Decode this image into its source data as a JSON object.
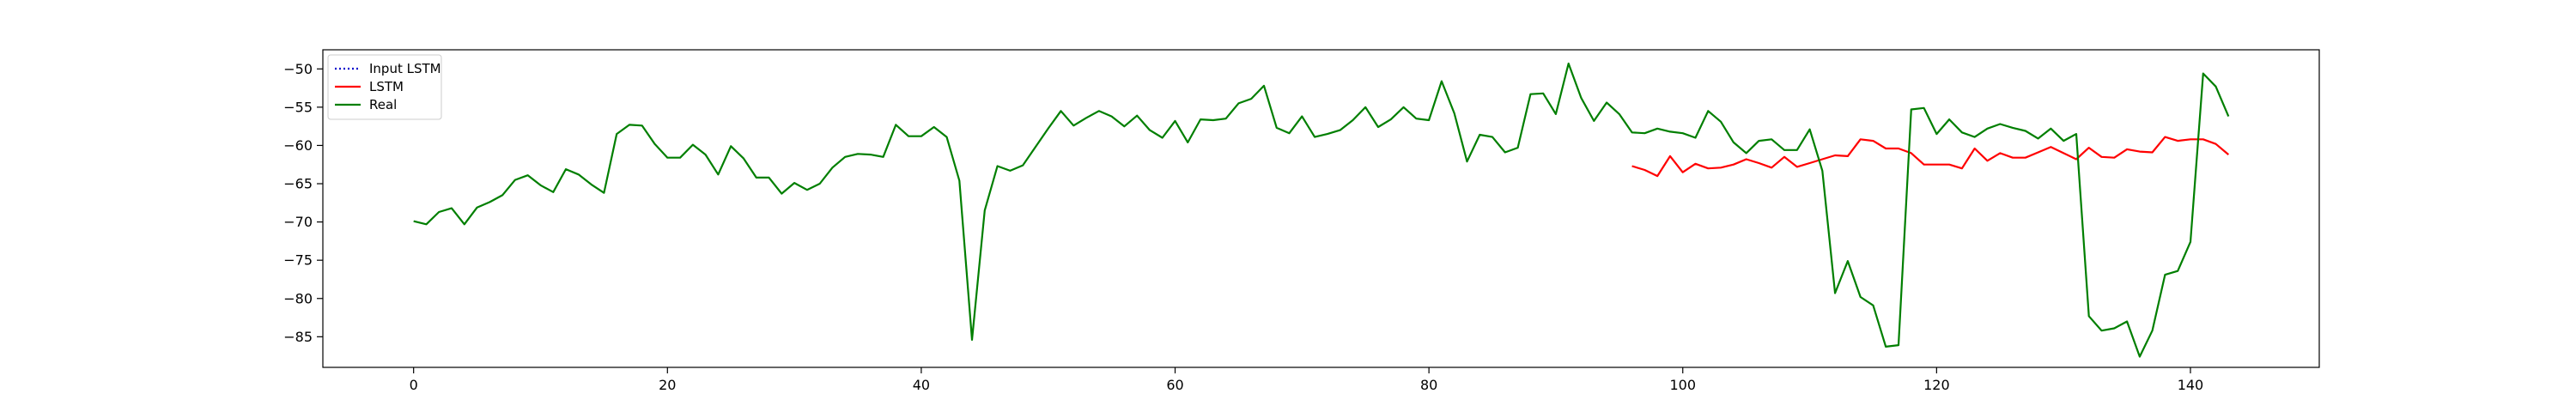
{
  "chart_data": {
    "type": "line",
    "title": "",
    "xlabel": "",
    "ylabel": "",
    "xlim": [
      -7.15,
      150.15
    ],
    "ylim": [
      -89.0,
      -47.5
    ],
    "xticks": [
      0,
      20,
      40,
      60,
      80,
      100,
      120,
      140
    ],
    "yticks": [
      -50,
      -55,
      -60,
      -65,
      -70,
      -75,
      -80,
      -85
    ],
    "grid": false,
    "legend_position": "top-left",
    "series": [
      {
        "name": "Input LSTM",
        "color": "#0000cc",
        "linestyle": "dotted",
        "x": [],
        "y": []
      },
      {
        "name": "LSTM",
        "color": "#ff0000",
        "linestyle": "solid",
        "x": [
          96,
          97,
          98,
          99,
          100,
          101,
          102,
          103,
          104,
          105,
          106,
          107,
          108,
          109,
          110,
          111,
          112,
          113,
          114,
          115,
          116,
          117,
          118,
          119,
          120,
          121,
          122,
          123,
          124,
          125,
          126,
          127,
          128,
          129,
          130,
          131,
          132,
          133,
          134,
          135,
          136,
          137,
          138,
          139,
          140,
          141,
          142,
          143
        ],
        "y": [
          -62.7,
          -63.2,
          -64.0,
          -61.4,
          -63.5,
          -62.4,
          -63.0,
          -62.9,
          -62.5,
          -61.8,
          -62.3,
          -62.9,
          -61.5,
          -62.8,
          -62.3,
          -61.8,
          -61.3,
          -61.4,
          -59.2,
          -59.4,
          -60.4,
          -60.4,
          -61.0,
          -62.5,
          -62.5,
          -62.5,
          -63.0,
          -60.4,
          -62.0,
          -61.0,
          -61.6,
          -61.6,
          -60.9,
          -60.2,
          -61.0,
          -61.8,
          -60.3,
          -61.5,
          -61.6,
          -60.5,
          -60.8,
          -60.9,
          -58.9,
          -59.4,
          -59.2,
          -59.2,
          -59.8,
          -61.2
        ]
      },
      {
        "name": "Real",
        "color": "#007f00",
        "linestyle": "solid",
        "x": [
          0,
          1,
          2,
          3,
          4,
          5,
          6,
          7,
          8,
          9,
          10,
          11,
          12,
          13,
          14,
          15,
          16,
          17,
          18,
          19,
          20,
          21,
          22,
          23,
          24,
          25,
          26,
          27,
          28,
          29,
          30,
          31,
          32,
          33,
          34,
          35,
          36,
          37,
          38,
          39,
          40,
          41,
          42,
          43,
          44,
          45,
          46,
          47,
          48,
          49,
          50,
          51,
          52,
          53,
          54,
          55,
          56,
          57,
          58,
          59,
          60,
          61,
          62,
          63,
          64,
          65,
          66,
          67,
          68,
          69,
          70,
          71,
          72,
          73,
          74,
          75,
          76,
          77,
          78,
          79,
          80,
          81,
          82,
          83,
          84,
          85,
          86,
          87,
          88,
          89,
          90,
          91,
          92,
          93,
          94,
          95,
          96,
          97,
          98,
          99,
          100,
          101,
          102,
          103,
          104,
          105,
          106,
          107,
          108,
          109,
          110,
          111,
          112,
          113,
          114,
          115,
          116,
          117,
          118,
          119,
          120,
          121,
          122,
          123,
          124,
          125,
          126,
          127,
          128,
          129,
          130,
          131,
          132,
          133,
          134,
          135,
          136,
          137,
          138,
          139,
          140,
          141,
          142,
          143
        ],
        "y": [
          -69.9,
          -70.3,
          -68.7,
          -68.2,
          -70.3,
          -68.1,
          -67.4,
          -66.5,
          -64.5,
          -63.9,
          -65.2,
          -66.1,
          -63.1,
          -63.8,
          -65.1,
          -66.2,
          -58.5,
          -57.3,
          -57.4,
          -59.8,
          -61.6,
          -61.6,
          -59.9,
          -61.2,
          -63.8,
          -60.1,
          -61.7,
          -64.2,
          -64.2,
          -66.3,
          -64.9,
          -65.8,
          -65.0,
          -62.9,
          -61.5,
          -61.1,
          -61.2,
          -61.5,
          -57.3,
          -58.8,
          -58.8,
          -57.6,
          -58.9,
          -64.6,
          -85.4,
          -68.5,
          -62.7,
          -63.3,
          -62.6,
          -60.2,
          -57.8,
          -55.5,
          -57.4,
          -56.4,
          -55.5,
          -56.2,
          -57.5,
          -56.1,
          -58.0,
          -59.0,
          -56.8,
          -59.6,
          -56.6,
          -56.7,
          -56.5,
          -54.5,
          -53.9,
          -52.2,
          -57.7,
          -58.4,
          -56.2,
          -58.9,
          -58.5,
          -58.0,
          -56.7,
          -55.0,
          -57.6,
          -56.6,
          -55.0,
          -56.5,
          -56.7,
          -51.6,
          -55.8,
          -62.1,
          -58.6,
          -58.9,
          -60.9,
          -60.3,
          -53.3,
          -53.2,
          -55.9,
          -49.3,
          -53.8,
          -56.8,
          -54.4,
          -55.9,
          -58.3,
          -58.4,
          -57.8,
          -58.2,
          -58.4,
          -59.0,
          -55.5,
          -56.9,
          -59.6,
          -61.0,
          -59.4,
          -59.2,
          -60.6,
          -60.6,
          -57.9,
          -63.3,
          -79.3,
          -75.1,
          -79.8,
          -80.9,
          -86.3,
          -86.1,
          -55.3,
          -55.1,
          -58.5,
          -56.6,
          -58.3,
          -58.9,
          -57.8,
          -57.2,
          -57.7,
          -58.1,
          -59.1,
          -57.8,
          -59.4,
          -58.5,
          -82.3,
          -84.2,
          -83.9,
          -83.0,
          -87.6,
          -84.2,
          -76.9,
          -76.4,
          -72.6,
          -50.6,
          -52.3,
          -56.2
        ]
      }
    ]
  }
}
